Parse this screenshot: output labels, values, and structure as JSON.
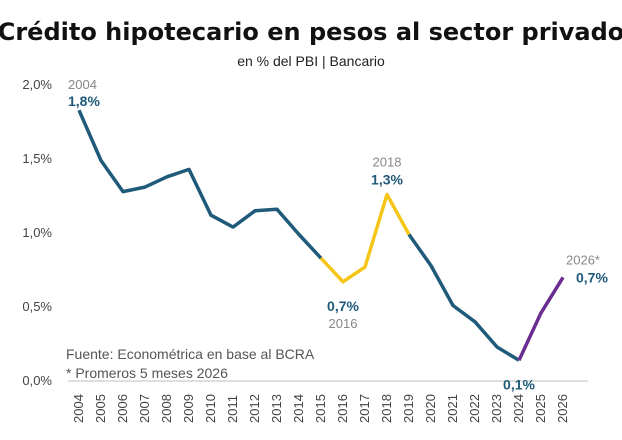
{
  "chart_data": {
    "type": "line",
    "title": "Crédito hipotecario en pesos al sector privado",
    "subtitle": "en % del PBI | Bancario",
    "xlabel": "",
    "ylabel": "",
    "ylim": [
      0,
      2
    ],
    "y_ticks": [
      "0,0%",
      "0,5%",
      "1,0%",
      "1,5%",
      "2,0%"
    ],
    "grid": false,
    "categories": [
      "2004",
      "2005",
      "2006",
      "2007",
      "2008",
      "2009",
      "2010",
      "2011",
      "2012",
      "2013",
      "2014",
      "2015",
      "2016",
      "2017",
      "2018",
      "2019",
      "2020",
      "2021",
      "2022",
      "2023",
      "2024",
      "2025",
      "2026"
    ],
    "values": [
      1.83,
      1.49,
      1.28,
      1.31,
      1.38,
      1.43,
      1.12,
      1.04,
      1.15,
      1.16,
      0.99,
      0.83,
      0.67,
      0.77,
      1.26,
      0.99,
      0.78,
      0.51,
      0.4,
      0.23,
      0.14,
      0.46,
      0.7
    ],
    "segments": [
      {
        "from": "2004",
        "to": "2015",
        "color": "#1f5a7a"
      },
      {
        "from": "2015",
        "to": "2019",
        "color": "#f5c518"
      },
      {
        "from": "2019",
        "to": "2024",
        "color": "#1f5a7a"
      },
      {
        "from": "2024",
        "to": "2026",
        "color": "#6a2c91"
      }
    ],
    "annotations": [
      {
        "year_text": "2004",
        "value_text": "1,8%",
        "x": "2004",
        "placement": "above"
      },
      {
        "year_text": "2016",
        "value_text": "0,7%",
        "x": "2016",
        "placement": "below"
      },
      {
        "year_text": "2018",
        "value_text": "1,3%",
        "x": "2018",
        "placement": "above"
      },
      {
        "year_text": "",
        "value_text": "0,1%",
        "x": "2024",
        "placement": "below"
      },
      {
        "year_text": "2026*",
        "value_text": "0,7%",
        "x": "2026",
        "placement": "right"
      }
    ],
    "notes": [
      "Fuente: Econométrica en base al BCRA",
      "* Promeros 5 meses 2026"
    ]
  },
  "colors": {
    "label_blue": "#1f5a7a",
    "axis": "#bfbfbf"
  }
}
